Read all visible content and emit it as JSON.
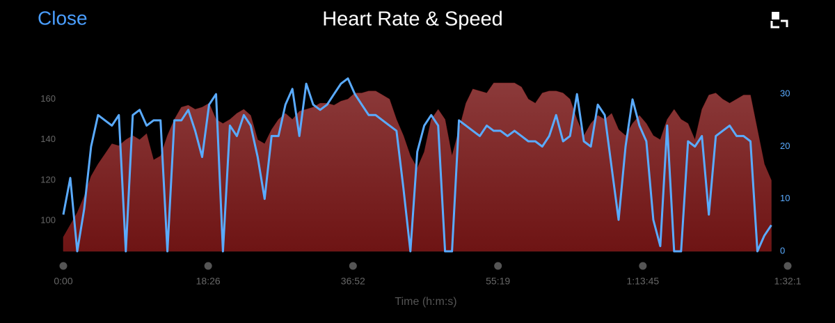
{
  "header": {
    "close": "Close"
  },
  "chart_data": {
    "type": "combo",
    "title": "Heart Rate & Speed",
    "x_label": "Time (h:m:s)",
    "x": [
      0,
      53,
      106,
      159,
      212,
      265,
      318,
      371,
      424,
      477,
      530,
      583,
      636,
      689,
      742,
      795,
      848,
      901,
      954,
      1007,
      1060,
      1113,
      1166,
      1219,
      1272,
      1325,
      1378,
      1431,
      1484,
      1537,
      1590,
      1643,
      1696,
      1749,
      1802,
      1855,
      1908,
      1961,
      2014,
      2067,
      2120,
      2173,
      2226,
      2279,
      2332,
      2385,
      2438,
      2491,
      2544,
      2597,
      2650,
      2703,
      2756,
      2809,
      2862,
      2915,
      2968,
      3021,
      3074,
      3127,
      3180,
      3233,
      3286,
      3339,
      3392,
      3445,
      3498,
      3551,
      3604,
      3657,
      3710,
      3763,
      3816,
      3869,
      3922,
      3975,
      4028,
      4081,
      4134,
      4187,
      4240,
      4293,
      4346,
      4399,
      4452,
      4505,
      4558,
      4611,
      4664,
      4717,
      4770,
      4823,
      4876,
      4929,
      4982,
      5035,
      5088,
      5141,
      5194,
      5247,
      5300,
      5353,
      5406
    ],
    "xlim": [
      0,
      5531
    ],
    "xticks": [
      {
        "value": 0,
        "label": "0:00"
      },
      {
        "value": 1106,
        "label": "18:26"
      },
      {
        "value": 2212,
        "label": "36:52"
      },
      {
        "value": 3319,
        "label": "55:19"
      },
      {
        "value": 4425,
        "label": "1:13:45"
      },
      {
        "value": 5531,
        "label": "1:32:1"
      }
    ],
    "ylim": [
      85,
      172
    ],
    "yticks": [
      100,
      120,
      140,
      160
    ],
    "y2lim": [
      0,
      33.7
    ],
    "y2ticks": [
      0,
      10,
      20,
      30
    ],
    "series": [
      {
        "type": "area",
        "color": "#7a2020",
        "values": [
          92,
          98,
          104,
          112,
          122,
          128,
          133,
          138,
          137,
          140,
          142,
          140,
          143,
          130,
          132,
          142,
          150,
          156,
          157,
          155,
          156,
          158,
          150,
          148,
          150,
          153,
          155,
          152,
          140,
          138,
          145,
          150,
          153,
          150,
          154,
          155,
          156,
          158,
          158,
          157,
          159,
          160,
          163,
          163,
          164,
          164,
          162,
          160,
          150,
          142,
          132,
          126,
          134,
          150,
          155,
          150,
          132,
          145,
          158,
          165,
          164,
          163,
          168,
          168,
          168,
          168,
          166,
          160,
          158,
          163,
          164,
          164,
          163,
          160,
          150,
          142,
          148,
          152,
          150,
          153,
          145,
          142,
          148,
          152,
          148,
          142,
          140,
          150,
          155,
          150,
          148,
          140,
          155,
          162,
          163,
          160,
          158,
          160,
          162,
          162,
          145,
          128,
          120
        ]
      },
      {
        "type": "line",
        "color": "#5aabff",
        "axis": "y2",
        "values": [
          7,
          14,
          0,
          8,
          20,
          26,
          25,
          24,
          26,
          0,
          26,
          27,
          24,
          25,
          25,
          0,
          25,
          25,
          27,
          23,
          18,
          28,
          30,
          0,
          24,
          22,
          26,
          24,
          18,
          10,
          22,
          22,
          28,
          31,
          22,
          32,
          28,
          27,
          28,
          30,
          32,
          33,
          30,
          28,
          26,
          26,
          25,
          24,
          23,
          12,
          0,
          19,
          24,
          26,
          24,
          0,
          0,
          25,
          24,
          23,
          22,
          24,
          23,
          23,
          22,
          23,
          22,
          21,
          21,
          20,
          22,
          26,
          21,
          22,
          30,
          21,
          20,
          28,
          26,
          16,
          6,
          20,
          29,
          24,
          21,
          6,
          1,
          24,
          0,
          0,
          21,
          20,
          22,
          7,
          22,
          23,
          24,
          22,
          22,
          21,
          0,
          3,
          5
        ]
      }
    ]
  }
}
